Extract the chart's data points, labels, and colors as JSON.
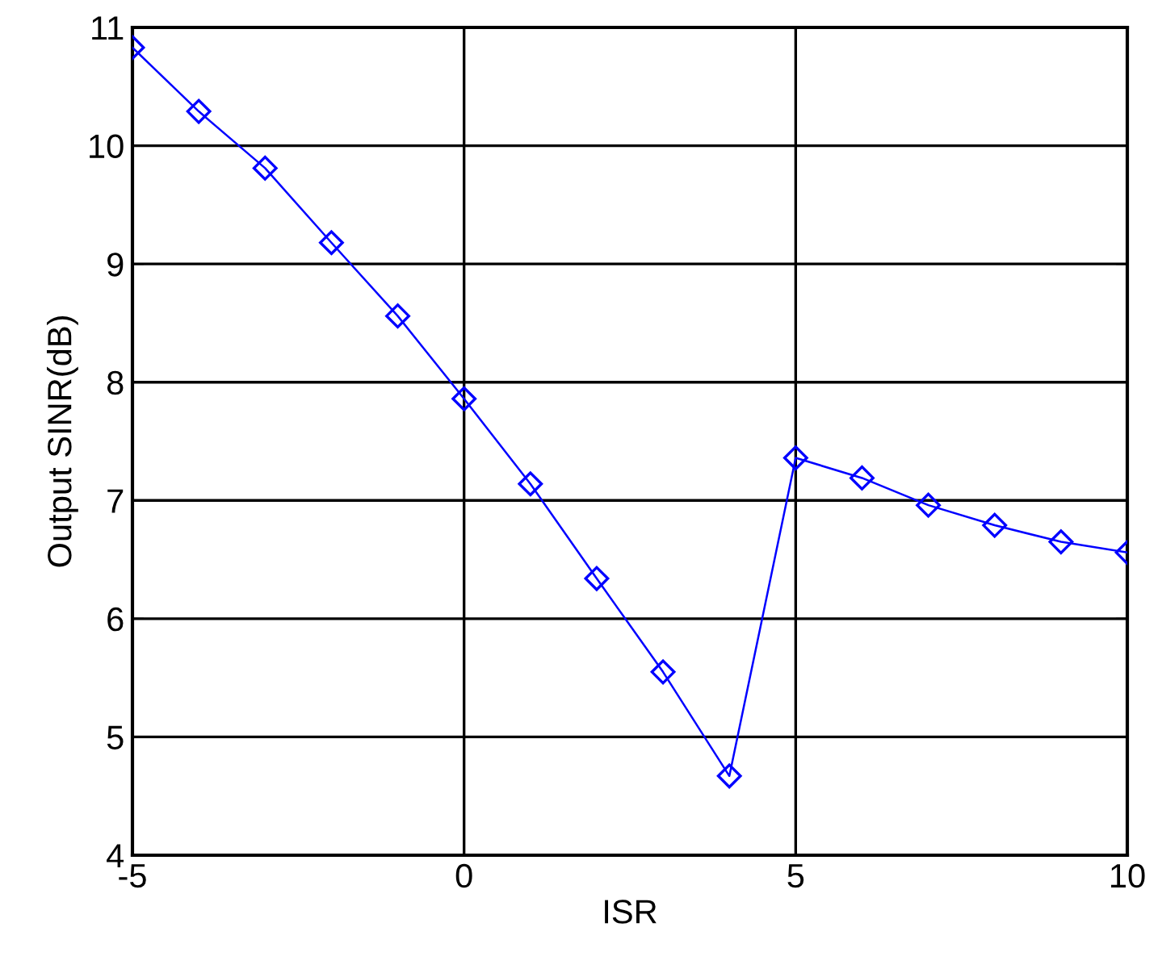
{
  "chart_data": {
    "type": "line",
    "xlabel": "ISR",
    "ylabel": "Output SINR(dB)",
    "x": [
      -5,
      -4,
      -3,
      -2,
      -1,
      0,
      1,
      2,
      3,
      4,
      5,
      6,
      7,
      8,
      9,
      10
    ],
    "series": [
      {
        "color": "#0000ff",
        "values": [
          10.83,
          10.29,
          9.81,
          9.18,
          8.56,
          7.86,
          7.14,
          6.34,
          5.55,
          4.67,
          7.36,
          7.19,
          6.96,
          6.79,
          6.65,
          6.56
        ]
      }
    ],
    "xlim": [
      -5,
      10
    ],
    "xticks": [
      -5,
      0,
      5,
      10
    ],
    "ylim": [
      4,
      11
    ],
    "yticks": [
      4,
      5,
      6,
      7,
      8,
      9,
      10,
      11
    ],
    "grid": true,
    "marker": "diamond",
    "line_style": "solid"
  }
}
